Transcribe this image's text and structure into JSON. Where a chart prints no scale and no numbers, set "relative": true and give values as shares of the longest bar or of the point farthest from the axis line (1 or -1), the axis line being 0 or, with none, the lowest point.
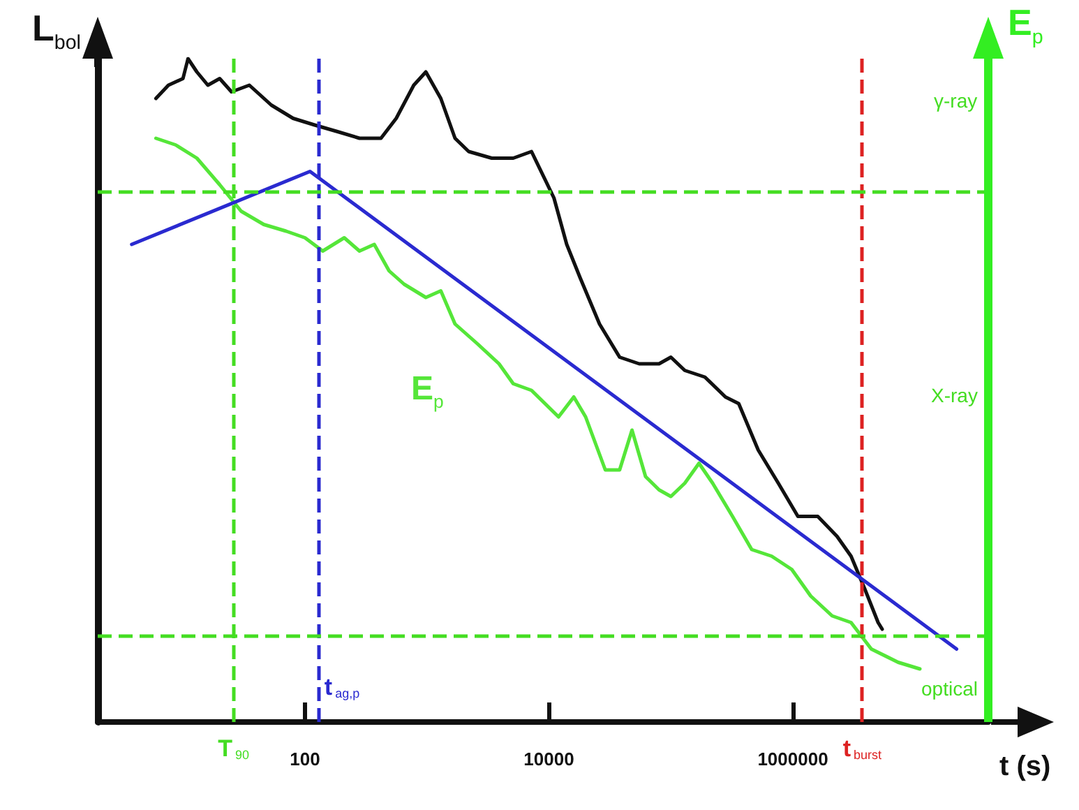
{
  "chart_data": {
    "type": "line",
    "relative": true,
    "xlabel": "t (s)",
    "ylabel": "L$_{bol}$",
    "y2label": "E$_{p}$",
    "log": "x",
    "xlim": [
      2,
      40000000
    ],
    "xticks": [
      100,
      10000,
      1000000
    ],
    "annotations": [
      "γ-ray",
      "X-ray",
      "optical"
    ],
    "grid": false,
    "legend": false,
    "marker": "none",
    "line_style": "solid",
    "series": [
      {
        "color": "#111111",
        "x": [
          6,
          7.6,
          10,
          11,
          13,
          16,
          20,
          25,
          35,
          53,
          80,
          120,
          185,
          280,
          420,
          560,
          780,
          980,
          1300,
          1700,
          2200,
          3400,
          5100,
          7200,
          11000,
          14000,
          18000,
          26000,
          38000,
          55000,
          80000,
          100000,
          130000,
          190000,
          280000,
          360000,
          520000,
          760000,
          1100000,
          1600000,
          2300000,
          3000000,
          3900000,
          5000000,
          5400000
        ],
        "values": [
          0.94,
          0.96,
          0.97,
          1.0,
          0.98,
          0.96,
          0.97,
          0.95,
          0.96,
          0.93,
          0.91,
          0.9,
          0.89,
          0.88,
          0.88,
          0.91,
          0.96,
          0.98,
          0.94,
          0.88,
          0.86,
          0.85,
          0.85,
          0.86,
          0.79,
          0.72,
          0.67,
          0.6,
          0.55,
          0.54,
          0.54,
          0.55,
          0.53,
          0.52,
          0.49,
          0.48,
          0.41,
          0.36,
          0.31,
          0.31,
          0.28,
          0.25,
          0.2,
          0.15,
          0.14
        ]
      },
      {
        "name": "E$_{p}$",
        "color": "#55e639",
        "x": [
          6,
          8.7,
          13,
          20,
          30,
          46,
          70,
          100,
          140,
          210,
          280,
          370,
          490,
          650,
          980,
          1300,
          1700,
          2600,
          3900,
          5100,
          7200,
          12000,
          16000,
          20000,
          29000,
          38000,
          48000,
          62000,
          80000,
          100000,
          130000,
          170000,
          220000,
          320000,
          460000,
          670000,
          980000,
          1400000,
          2100000,
          3000000,
          4400000,
          7300000,
          11000000
        ],
        "values": [
          0.88,
          0.87,
          0.85,
          0.81,
          0.77,
          0.75,
          0.74,
          0.73,
          0.71,
          0.73,
          0.71,
          0.72,
          0.68,
          0.66,
          0.64,
          0.65,
          0.6,
          0.57,
          0.54,
          0.51,
          0.5,
          0.46,
          0.49,
          0.46,
          0.38,
          0.38,
          0.44,
          0.37,
          0.35,
          0.34,
          0.36,
          0.39,
          0.36,
          0.31,
          0.26,
          0.25,
          0.23,
          0.19,
          0.16,
          0.15,
          0.11,
          0.09,
          0.08
        ]
      },
      {
        "color": "#2a2ad0",
        "x": [
          3.8,
          110,
          22000000
        ],
        "values": [
          0.72,
          0.83,
          0.11
        ]
      }
    ],
    "ref_lines": [
      {
        "axis": "x",
        "value": 26,
        "label": "T$_{90}$",
        "color": "#44dd22",
        "line_style": "dashed"
      },
      {
        "axis": "x",
        "value": 130,
        "label": "t$_{ag,p}$",
        "color": "#2a2ad0",
        "line_style": "dashed"
      },
      {
        "axis": "x",
        "value": 3700000,
        "label": "t$_{burst}$",
        "color": "#dd2222",
        "line_style": "dashed"
      },
      {
        "axis": "y",
        "value": 0.8,
        "color": "#44dd22",
        "line_style": "dashed"
      },
      {
        "axis": "y",
        "value": 0.13,
        "color": "#44dd22",
        "line_style": "dashed"
      }
    ]
  }
}
